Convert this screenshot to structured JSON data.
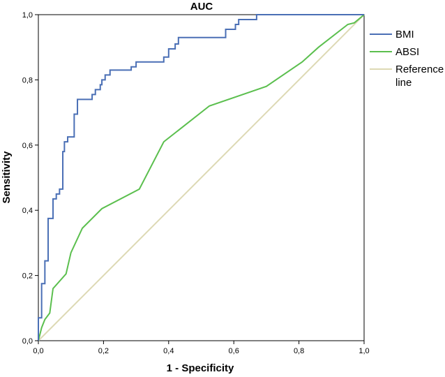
{
  "chart_data": {
    "type": "line",
    "title": "AUC",
    "xlabel": "1 - Specificity",
    "ylabel": "Sensitivity",
    "xlim": [
      0,
      1
    ],
    "ylim": [
      0,
      1
    ],
    "xticks": [
      "0,0",
      "0,2",
      "0,4",
      "0,6",
      "0,8",
      "1,0"
    ],
    "yticks": [
      "0,0",
      "0,2",
      "0,4",
      "0,6",
      "0,8",
      "1,0"
    ],
    "grid": false,
    "legend_position": "right",
    "series": [
      {
        "name": "BMI",
        "color": "#4A6FB5",
        "step": true,
        "x": [
          0.0,
          0.0,
          0.01,
          0.01,
          0.02,
          0.02,
          0.03,
          0.03,
          0.045,
          0.045,
          0.055,
          0.055,
          0.065,
          0.065,
          0.075,
          0.075,
          0.08,
          0.08,
          0.09,
          0.09,
          0.11,
          0.11,
          0.12,
          0.12,
          0.165,
          0.165,
          0.175,
          0.175,
          0.19,
          0.19,
          0.195,
          0.195,
          0.205,
          0.205,
          0.22,
          0.22,
          0.285,
          0.285,
          0.3,
          0.3,
          0.385,
          0.385,
          0.4,
          0.4,
          0.42,
          0.42,
          0.43,
          0.43,
          0.575,
          0.575,
          0.605,
          0.605,
          0.615,
          0.615,
          0.67,
          0.67,
          1.0
        ],
        "y": [
          0.0,
          0.07,
          0.07,
          0.175,
          0.175,
          0.245,
          0.245,
          0.375,
          0.375,
          0.435,
          0.435,
          0.45,
          0.45,
          0.465,
          0.465,
          0.58,
          0.58,
          0.61,
          0.61,
          0.625,
          0.625,
          0.695,
          0.695,
          0.74,
          0.74,
          0.755,
          0.755,
          0.77,
          0.77,
          0.785,
          0.785,
          0.8,
          0.8,
          0.815,
          0.815,
          0.83,
          0.83,
          0.84,
          0.84,
          0.855,
          0.855,
          0.87,
          0.87,
          0.895,
          0.895,
          0.91,
          0.91,
          0.93,
          0.93,
          0.955,
          0.955,
          0.97,
          0.97,
          0.985,
          0.985,
          1.0,
          1.0
        ]
      },
      {
        "name": "ABSI",
        "color": "#5BBF4E",
        "step": false,
        "x": [
          0.0,
          0.01,
          0.02,
          0.035,
          0.045,
          0.085,
          0.1,
          0.135,
          0.195,
          0.31,
          0.385,
          0.525,
          0.7,
          0.81,
          0.86,
          0.95,
          0.97,
          1.0
        ],
        "y": [
          0.0,
          0.04,
          0.065,
          0.085,
          0.16,
          0.205,
          0.27,
          0.345,
          0.405,
          0.465,
          0.61,
          0.72,
          0.78,
          0.855,
          0.9,
          0.97,
          0.975,
          1.0
        ]
      },
      {
        "name": "Reference line",
        "color": "#DDD9B4",
        "step": false,
        "x": [
          0.0,
          1.0
        ],
        "y": [
          0.0,
          1.0
        ]
      }
    ],
    "legend": [
      {
        "label_lines": [
          "BMI"
        ]
      },
      {
        "label_lines": [
          "ABSI"
        ]
      },
      {
        "label_lines": [
          "Reference",
          "line"
        ]
      }
    ]
  }
}
